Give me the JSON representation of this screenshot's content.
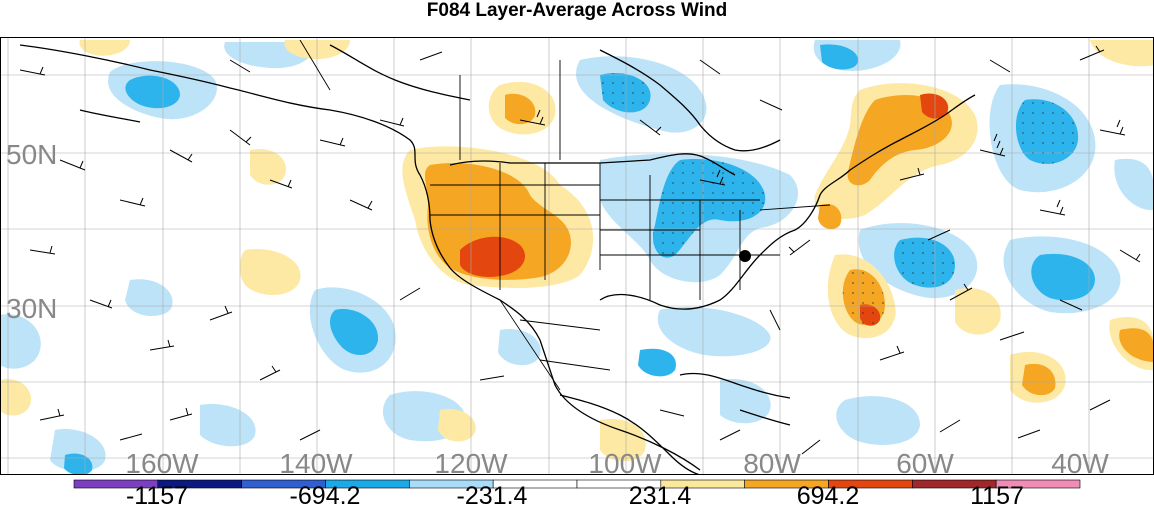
{
  "title": "F084 Layer-Average Across Wind",
  "lat_labels": [
    "50N",
    "30N"
  ],
  "lon_labels": [
    "160W",
    "140W",
    "120W",
    "100W",
    "80W",
    "60W",
    "40W"
  ],
  "colorbar": {
    "colors": [
      "#7d3fc2",
      "#0a1a82",
      "#2f5fd0",
      "#1aaae8",
      "#a9dcf8",
      "#ffffff",
      "#ffffff",
      "#fbe89a",
      "#f5a623",
      "#e4460f",
      "#a0282a",
      "#f08cb5"
    ],
    "labels": [
      "-1157",
      "-694.2",
      "-231.4",
      "231.4",
      "694.2",
      "1157"
    ]
  },
  "shading": {
    "light_blue": "#bde3f8",
    "mid_blue": "#2eb4ec",
    "light_yellow": "#fde9a3",
    "orange": "#f5a623",
    "red_orange": "#e4460f"
  }
}
